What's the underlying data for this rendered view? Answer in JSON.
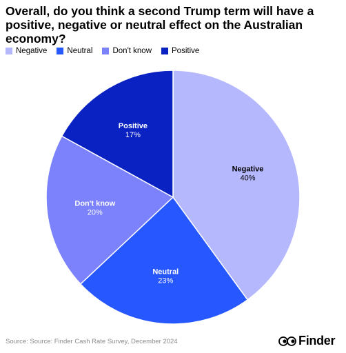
{
  "chart_data": {
    "type": "pie",
    "title": "Overall, do you think a second Trump term will have a positive, negative or neutral effect on the Australian economy?",
    "legend_position": "top-left",
    "slices": [
      {
        "label": "Negative",
        "value": 40,
        "display": "40%",
        "color": "#b5b8fd"
      },
      {
        "label": "Neutral",
        "value": 23,
        "display": "23%",
        "color": "#2757ff"
      },
      {
        "label": "Don't know",
        "value": 20,
        "display": "20%",
        "color": "#7b82fb"
      },
      {
        "label": "Positive",
        "value": 17,
        "display": "17%",
        "color": "#0b22c3"
      }
    ]
  },
  "footer": {
    "source": "Source: Source: Finder Cash Rate Survey, December 2024",
    "brand": "Finder"
  }
}
